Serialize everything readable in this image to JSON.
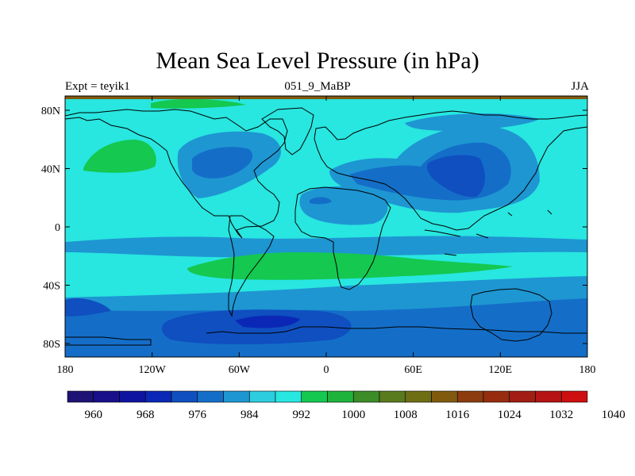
{
  "title": "Mean Sea Level Pressure (in hPa)",
  "left_label": "Expt = teyik1",
  "center_label": "051_9_MaBP",
  "right_label": "JJA",
  "lat_ticks": [
    "80N",
    "40N",
    "0",
    "40S",
    "80S"
  ],
  "lon_ticks": [
    "180",
    "120W",
    "60W",
    "0",
    "60E",
    "120E",
    "180"
  ],
  "colorbar": {
    "labels": [
      "960",
      "968",
      "976",
      "984",
      "992",
      "1000",
      "1008",
      "1016",
      "1024",
      "1032",
      "1040"
    ],
    "colors": [
      "#1e1275",
      "#190f8a",
      "#0f14a0",
      "#0a28b5",
      "#0f4fc0",
      "#146ec8",
      "#1e96d2",
      "#2dcde0",
      "#28e6e0",
      "#14c850",
      "#1eb43c",
      "#3c8c28",
      "#5a7a1e",
      "#6e6e14",
      "#825a0f",
      "#8c3c0f",
      "#962d0f",
      "#a01e14",
      "#b41414",
      "#cd0f0f"
    ]
  },
  "map_colors": {
    "ocean_base": "#28e6e0",
    "light_blue": "#1e96d2",
    "mid_blue": "#146ec8",
    "deep_blue": "#0f4fc0",
    "darkest_blue": "#0a28b5",
    "green": "#14c850",
    "top_strip": "#825a0f"
  }
}
